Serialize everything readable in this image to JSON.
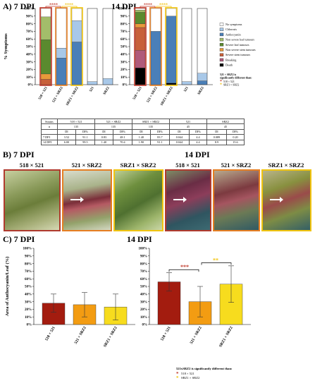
{
  "panelA": {
    "label": "A)",
    "panels": [
      {
        "title": "7 DPI"
      },
      {
        "title": "14 DPI"
      }
    ],
    "stars_red": "****",
    "stars_yellow": "****",
    "legend": {
      "items": [
        {
          "label": "No symptoms",
          "color": "#ffffff"
        },
        {
          "label": "Chlorosis",
          "color": "#a8c8e8"
        },
        {
          "label": "Anthocyanin",
          "color": "#4a7fb8"
        },
        {
          "label": "Non severe leaf tumours",
          "color": "#a3bd6a"
        },
        {
          "label": "Severe leaf tumours",
          "color": "#5a8a2e"
        },
        {
          "label": "Non severe stem tumours",
          "color": "#e89a3a"
        },
        {
          "label": "Severe stem tumours",
          "color": "#c8603a"
        },
        {
          "label": "Breaking",
          "color": "#b05a7a"
        },
        {
          "label": "Death",
          "color": "#000000"
        }
      ],
      "sig_title": "521 × SRZ2 is significantly different than:",
      "sig_items": [
        {
          "label": "518 × 521",
          "color": "#c0392b"
        },
        {
          "label": "SRZ1 × SRZ2",
          "color": "#f1c40f"
        }
      ]
    }
  },
  "chart_data": [
    {
      "type": "bar",
      "title": "7 DPI",
      "ylabel": "% Symptoms",
      "ylim": [
        0,
        100
      ],
      "yticks": [
        "0%",
        "10%",
        "20%",
        "30%",
        "40%",
        "50%",
        "60%",
        "70%",
        "80%",
        "90%",
        "100%"
      ],
      "categories": [
        "518 × 521",
        "521 × SRZ2",
        "SRZ1 × SRZ2",
        "521",
        "SRZ2"
      ],
      "stacked": true,
      "series": [
        {
          "name": "Death",
          "color": "#000000",
          "values": [
            0,
            0,
            0,
            0,
            0
          ]
        },
        {
          "name": "Breaking",
          "color": "#b05a7a",
          "values": [
            0,
            0,
            0,
            0,
            0
          ]
        },
        {
          "name": "Severe stem tumours",
          "color": "#c8603a",
          "values": [
            7,
            0,
            0,
            0,
            0
          ]
        },
        {
          "name": "Non severe stem tumours",
          "color": "#e89a3a",
          "values": [
            7,
            0,
            0,
            0,
            0
          ]
        },
        {
          "name": "Severe leaf tumours",
          "color": "#5a8a2e",
          "values": [
            45,
            0,
            0,
            0,
            0
          ]
        },
        {
          "name": "Non severe leaf tumours",
          "color": "#a3bd6a",
          "values": [
            30,
            0,
            0,
            0,
            0
          ]
        },
        {
          "name": "Anthocyanin",
          "color": "#4a7fb8",
          "values": [
            0,
            35,
            56,
            0,
            0
          ]
        },
        {
          "name": "Chlorosis",
          "color": "#a8c8e8",
          "values": [
            0,
            13,
            28,
            4,
            8
          ]
        },
        {
          "name": "No symptoms",
          "color": "#ffffff",
          "values": [
            11,
            52,
            16,
            96,
            92
          ]
        }
      ]
    },
    {
      "type": "bar",
      "title": "14 DPI",
      "ylim": [
        0,
        100
      ],
      "yticks": [
        "0%",
        "10%",
        "20%",
        "30%",
        "40%",
        "50%",
        "60%",
        "70%",
        "80%",
        "90%",
        "100%"
      ],
      "categories": [
        "518 × 521",
        "521 × SRZ2",
        "SRZ1 × SRZ2",
        "521",
        "SRZ2"
      ],
      "stacked": true,
      "series": [
        {
          "name": "Death",
          "color": "#000000",
          "values": [
            22,
            0,
            2,
            0,
            0
          ]
        },
        {
          "name": "Breaking",
          "color": "#b05a7a",
          "values": [
            23,
            0,
            0,
            0,
            0
          ]
        },
        {
          "name": "Severe stem tumours",
          "color": "#c8603a",
          "values": [
            30,
            0,
            0,
            0,
            0
          ]
        },
        {
          "name": "Non severe stem tumours",
          "color": "#e89a3a",
          "values": [
            5,
            0,
            0,
            0,
            0
          ]
        },
        {
          "name": "Severe leaf tumours",
          "color": "#5a8a2e",
          "values": [
            15,
            0,
            0,
            0,
            0
          ]
        },
        {
          "name": "Non severe leaf tumours",
          "color": "#a3bd6a",
          "values": [
            3,
            0,
            0,
            0,
            0
          ]
        },
        {
          "name": "Anthocyanin",
          "color": "#4a7fb8",
          "values": [
            0,
            70,
            88,
            0,
            5
          ]
        },
        {
          "name": "Chlorosis",
          "color": "#a8c8e8",
          "values": [
            0,
            0,
            0,
            4,
            10
          ]
        },
        {
          "name": "No symptoms",
          "color": "#ffffff",
          "values": [
            2,
            30,
            10,
            96,
            85
          ]
        }
      ]
    },
    {
      "type": "bar",
      "title": "7 DPI",
      "ylabel": "Area of Anthocyanin/Leaf (%)",
      "ylim": [
        0,
        100
      ],
      "yticks": [
        "0%",
        "10%",
        "20%",
        "30%",
        "40%",
        "50%",
        "60%",
        "70%",
        "80%",
        "90%",
        "100%"
      ],
      "categories": [
        "518 × 521",
        "521 × SRZ2",
        "SRZ1 × SRZ2"
      ],
      "values": [
        28,
        26,
        23
      ],
      "errors": [
        12,
        16,
        17
      ],
      "colors": [
        "#a31c0f",
        "#f39c12",
        "#f7dc1e"
      ]
    },
    {
      "type": "bar",
      "title": "14 DPI",
      "ylim": [
        0,
        100
      ],
      "yticks": [
        "0%",
        "10%",
        "20%",
        "30%",
        "40%",
        "50%",
        "60%",
        "70%",
        "80%",
        "90%",
        "100%"
      ],
      "categories": [
        "518 × 521",
        "521 × SRZ2",
        "SRZ1 × SRZ2"
      ],
      "values": [
        56,
        30,
        53
      ],
      "errors": [
        12,
        20,
        24
      ],
      "colors": [
        "#a31c0f",
        "#f39c12",
        "#f7dc1e"
      ],
      "annotations": [
        {
          "text": "***",
          "color": "#c0392b"
        },
        {
          "text": "**",
          "color": "#f1c40f"
        }
      ]
    }
  ],
  "table": {
    "header": [
      "Strains",
      "518 × 521",
      "",
      "521 × SRZ2",
      "",
      "SRZ1 × SRZ2",
      "",
      "521",
      "",
      "SRZ2",
      ""
    ],
    "n_row": [
      "n",
      "135",
      "",
      "135",
      "",
      "135",
      "",
      "45",
      "",
      "45",
      ""
    ],
    "di_row": [
      "",
      "DI",
      "DI%",
      "DI",
      "DI%",
      "DI",
      "DI%",
      "DI",
      "DI%",
      "DI",
      "DI%"
    ],
    "rows": [
      [
        "7 DPI",
        "3.52",
        "91.1",
        "0.83",
        "48.1",
        "1.40",
        "83.7",
        "0.044",
        "4.4",
        "0.089",
        "0.20"
      ],
      [
        "14 DPI",
        "6.00",
        "99.5",
        "1.40",
        "70.4",
        "1.90",
        "91.1",
        "0.044",
        "4.4",
        "8.9",
        "15.6"
      ]
    ]
  },
  "panelB": {
    "label": "B)",
    "left_title": "7 DPI",
    "right_title": "14 DPI",
    "photos": [
      {
        "title": "518 × 521",
        "border": "#b03a2e"
      },
      {
        "title": "521 × SRZ2",
        "border": "#e67e22"
      },
      {
        "title": "SRZ1 × SRZ2",
        "border": "#f1c40f"
      },
      {
        "title": "518 × 521",
        "border": "#b03a2e"
      },
      {
        "title": "521 × SRZ2",
        "border": "#e67e22"
      },
      {
        "title": "SRZ1 × SRZ2",
        "border": "#f1c40f"
      }
    ]
  },
  "panelC": {
    "label": "C)",
    "left_title": "7 DPI",
    "right_title": "14 DPI",
    "legend_title": "521xSRZ2 is significantly different than:",
    "legend_items": [
      {
        "label": "518 × 521",
        "color": "#c0392b"
      },
      {
        "label": "SRZ1 × SRZ2",
        "color": "#f1c40f"
      }
    ]
  }
}
